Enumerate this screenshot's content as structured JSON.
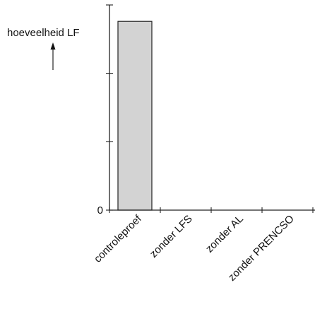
{
  "chart_data": {
    "type": "bar",
    "categories": [
      "controleproef",
      "zonder LFS",
      "zonder AL",
      "zonder PRENCSO"
    ],
    "values": [
      0.92,
      0,
      0,
      0
    ],
    "ylabel": "hoeveelheid LF",
    "yticks": [
      {
        "value": 0,
        "label": "0"
      },
      {
        "value": 0.333,
        "label": ""
      },
      {
        "value": 0.667,
        "label": ""
      },
      {
        "value": 1,
        "label": ""
      }
    ],
    "ylim": [
      0,
      1
    ],
    "bar_color": "#d3d3d3",
    "bar_edge_color": "#222222",
    "grid": false,
    "legend": "none"
  }
}
